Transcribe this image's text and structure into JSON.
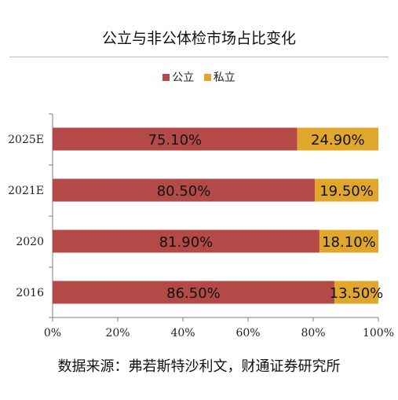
{
  "title": "公立与非公体检市场占比变化",
  "source": "数据来源：弗若斯特沙利文，财通证券研究所",
  "colors": {
    "public": "#b44a47",
    "private": "#e1a72c"
  },
  "chart_data": {
    "type": "bar",
    "orientation": "horizontal",
    "stacked": true,
    "categories": [
      "2025E",
      "2021E",
      "2020",
      "2016"
    ],
    "series": [
      {
        "name": "公立",
        "values": [
          75.1,
          80.5,
          81.9,
          86.5
        ],
        "labels": [
          "75.10%",
          "80.50%",
          "81.90%",
          "86.50%"
        ]
      },
      {
        "name": "私立",
        "values": [
          24.9,
          19.5,
          18.1,
          13.5
        ],
        "labels": [
          "24.90%",
          "19.50%",
          "18.10%",
          "13.50%"
        ]
      }
    ],
    "xlim": [
      0,
      100
    ],
    "xticks": [
      "0%",
      "20%",
      "40%",
      "60%",
      "80%",
      "100%"
    ],
    "legend": "top-center",
    "grid": false
  }
}
